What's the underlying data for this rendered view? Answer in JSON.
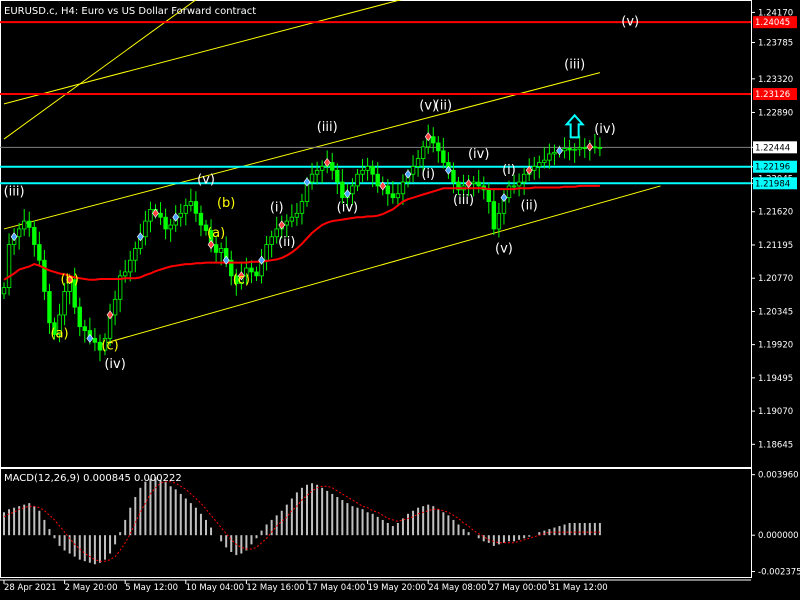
{
  "colors": {
    "background": "#000000",
    "axis": "#ffffff",
    "grid": "#2a2a2a",
    "bull_candle": "#00ff00",
    "bear_candle": "#00ff00",
    "moving_average": "#ff0000",
    "channel": "#ffff00",
    "resistance": "#ff0000",
    "support": "#00ffff",
    "macd_hist": "#c0c0c0",
    "macd_signal": "#ff0000",
    "wave_white": "#ffffff",
    "wave_yellow": "#ffff00",
    "price_box_red": "#ff0000",
    "price_box_cyan": "#00ffff",
    "arrow": "#00ffff"
  },
  "chart_data": [
    {
      "type": "line",
      "title": "EURUSD.c, H4:  Euro vs US Dollar Forward contract",
      "ylim": [
        1.18342,
        1.24303
      ],
      "y_ticks": [
        "1.24170",
        "1.23785",
        "1.23320",
        "1.22890",
        "1.22444",
        "1.22196",
        "1.22045",
        "1.21984",
        "1.21620",
        "1.21195",
        "1.20770",
        "1.20345",
        "1.19920",
        "1.19495",
        "1.19070",
        "1.18645"
      ],
      "x_ticks": [
        "28 Apr 2021",
        "2 May 20:00",
        "5 May 12:00",
        "10 May 04:00",
        "12 May 16:00",
        "17 May 04:00",
        "19 May 20:00",
        "24 May 08:00",
        "27 May 00:00",
        "31 May 12:00"
      ],
      "x_count": 119,
      "x_tick_index": [
        0,
        12,
        24,
        36,
        48,
        60,
        72,
        84,
        96,
        108
      ],
      "close": [
        1.2065,
        1.212,
        1.213,
        1.214,
        1.215,
        1.2142,
        1.212,
        1.21,
        1.206,
        1.202,
        1.2005,
        1.203,
        1.206,
        1.2075,
        1.204,
        1.2015,
        1.201,
        1.2,
        1.1995,
        1.1985,
        1.2,
        1.203,
        1.205,
        1.208,
        1.2085,
        1.21,
        1.2115,
        1.213,
        1.215,
        1.2165,
        1.216,
        1.2155,
        1.214,
        1.2145,
        1.2155,
        1.216,
        1.217,
        1.2175,
        1.216,
        1.2145,
        1.2138,
        1.212,
        1.211,
        1.2115,
        1.21,
        1.208,
        1.207,
        1.208,
        1.209,
        1.2085,
        1.208,
        1.21,
        1.212,
        1.213,
        1.214,
        1.2145,
        1.215,
        1.2155,
        1.216,
        1.2175,
        1.22,
        1.221,
        1.2215,
        1.222,
        1.2225,
        1.2215,
        1.22,
        1.218,
        1.2185,
        1.2195,
        1.221,
        1.2215,
        1.222,
        1.221,
        1.2195,
        1.2195,
        1.2185,
        1.218,
        1.2185,
        1.22,
        1.221,
        1.222,
        1.223,
        1.2245,
        1.2258,
        1.225,
        1.224,
        1.2225,
        1.2215,
        1.22,
        1.219,
        1.2195,
        1.2198,
        1.22,
        1.2195,
        1.219,
        1.2175,
        1.214,
        1.216,
        1.218,
        1.2195,
        1.2195,
        1.22,
        1.221,
        1.2215,
        1.222,
        1.2225,
        1.2228,
        1.2236,
        1.2238,
        1.224,
        1.2243,
        1.2241,
        1.2242,
        1.2244,
        1.2243,
        1.2245,
        1.2244,
        1.2244
      ],
      "high_range": 0.0022,
      "moving_average": [
        1.2075,
        1.2079,
        1.2083,
        1.2088,
        1.209,
        1.2092,
        1.2095,
        1.2093,
        1.209,
        1.2087,
        1.2085,
        1.2083,
        1.2082,
        1.208,
        1.2078,
        1.2077,
        1.2076,
        1.2075,
        1.2075,
        1.2076,
        1.2076,
        1.2076,
        1.2076,
        1.2076,
        1.2077,
        1.2077,
        1.2077,
        1.2078,
        1.2081,
        1.2083,
        1.2086,
        1.2088,
        1.209,
        1.2092,
        1.2093,
        1.2094,
        1.2095,
        1.2095,
        1.2096,
        1.2096,
        1.2097,
        1.2097,
        1.2097,
        1.2097,
        1.2097,
        1.2097,
        1.2097,
        1.2097,
        1.2097,
        1.2098,
        1.2098,
        1.2098,
        1.2099,
        1.21,
        1.2101,
        1.2103,
        1.2106,
        1.211,
        1.2115,
        1.2121,
        1.2128,
        1.2135,
        1.214,
        1.2145,
        1.2148,
        1.215,
        1.2151,
        1.2152,
        1.2153,
        1.2154,
        1.2155,
        1.2155,
        1.2156,
        1.2156,
        1.2157,
        1.2159,
        1.2162,
        1.2165,
        1.217,
        1.2175,
        1.2178,
        1.218,
        1.2182,
        1.2184,
        1.2186,
        1.2188,
        1.219,
        1.2192,
        1.2192,
        1.2192,
        1.2192,
        1.2192,
        1.2192,
        1.2192,
        1.2192,
        1.2192,
        1.2191,
        1.2191,
        1.2191,
        1.2191,
        1.2191,
        1.2191,
        1.2192,
        1.2192,
        1.2192,
        1.2193,
        1.2193,
        1.2193,
        1.2193,
        1.2193,
        1.2193,
        1.2194,
        1.2194,
        1.2194,
        1.2195,
        1.2195,
        1.2195,
        1.2195,
        1.2195
      ],
      "horizontal_levels": [
        {
          "price": 1.24045,
          "label": "1.24045",
          "kind": "resistance"
        },
        {
          "price": 1.23126,
          "label": "1.23126",
          "kind": "resistance"
        },
        {
          "price": 1.22196,
          "label": "1.22196",
          "kind": "support"
        },
        {
          "price": 1.21984,
          "label": "1.21984",
          "kind": "support"
        }
      ],
      "current_price": "1.22444",
      "wave_labels": [
        {
          "text": "(iii)",
          "i": 2,
          "price": 1.2183,
          "color": "white"
        },
        {
          "text": "(a)",
          "i": 11,
          "price": 1.2001,
          "color": "yellow"
        },
        {
          "text": "(b)",
          "i": 13,
          "price": 1.207,
          "color": "yellow"
        },
        {
          "text": "(c)",
          "i": 21,
          "price": 1.1986,
          "color": "yellow"
        },
        {
          "text": "(iv)",
          "i": 22,
          "price": 1.1962,
          "color": "white"
        },
        {
          "text": "(v)",
          "i": 40,
          "price": 1.2198,
          "color": "white"
        },
        {
          "text": "(b)",
          "i": 44,
          "price": 1.2168,
          "color": "yellow"
        },
        {
          "text": "(a)",
          "i": 42,
          "price": 1.213,
          "color": "yellow"
        },
        {
          "text": "(c)",
          "i": 47,
          "price": 1.207,
          "color": "yellow"
        },
        {
          "text": "(i)",
          "i": 54,
          "price": 1.2162,
          "color": "white"
        },
        {
          "text": "(ii)",
          "i": 56,
          "price": 1.2118,
          "color": "white"
        },
        {
          "text": "(iii)",
          "i": 64,
          "price": 1.2265,
          "color": "white"
        },
        {
          "text": "(iv)",
          "i": 68,
          "price": 1.2162,
          "color": "white"
        },
        {
          "text": "(i)",
          "i": 84,
          "price": 1.2205,
          "color": "white"
        },
        {
          "text": "(v)",
          "i": 84,
          "price": 1.2293,
          "color": "white"
        },
        {
          "text": "(ii)",
          "i": 87,
          "price": 1.2293,
          "color": "white"
        },
        {
          "text": "(iii)",
          "i": 91,
          "price": 1.2172,
          "color": "white"
        },
        {
          "text": "(iv)",
          "i": 94,
          "price": 1.2231,
          "color": "white"
        },
        {
          "text": "(v)",
          "i": 99,
          "price": 1.211,
          "color": "white"
        },
        {
          "text": "(i)",
          "i": 100,
          "price": 1.221,
          "color": "white"
        },
        {
          "text": "(ii)",
          "i": 104,
          "price": 1.2165,
          "color": "white"
        },
        {
          "text": "(iv)",
          "i": 119,
          "price": 1.2263,
          "color": "white"
        },
        {
          "text": "(iii)",
          "i": 113,
          "price": 1.2345,
          "color": "white"
        },
        {
          "text": "(v)",
          "i": 124,
          "price": 1.24,
          "color": "white"
        }
      ],
      "up_arrow": {
        "i": 113,
        "price": 1.227
      },
      "channels": [
        {
          "from": [
            19,
            1.1992
          ],
          "to": [
            130,
            1.2195
          ]
        },
        {
          "from": [
            0,
            1.214
          ],
          "to": [
            118,
            1.234
          ]
        },
        {
          "from": [
            0,
            1.23
          ],
          "to": [
            118,
            1.25
          ]
        },
        {
          "from": [
            0,
            1.2255
          ],
          "to": [
            48,
            1.248
          ]
        }
      ]
    },
    {
      "type": "bar",
      "title": "MACD(12,26,9) 0.000845 0.000222",
      "ylim": [
        -0.0028,
        0.0042
      ],
      "y_ticks": [
        "0.003960",
        "0.000000",
        "-0.002375"
      ],
      "macd": [
        0.0015,
        0.0017,
        0.0018,
        0.0019,
        0.002,
        0.0021,
        0.0019,
        0.0016,
        0.001,
        0.0004,
        -0.0002,
        -0.0007,
        -0.001,
        -0.0012,
        -0.0014,
        -0.0016,
        -0.0017,
        -0.0018,
        -0.0019,
        -0.0018,
        -0.0016,
        -0.0012,
        -0.0006,
        0.0002,
        0.001,
        0.0018,
        0.0025,
        0.0031,
        0.0035,
        0.0037,
        0.0038,
        0.0036,
        0.0035,
        0.0032,
        0.003,
        0.0027,
        0.0024,
        0.0021,
        0.0018,
        0.0014,
        0.001,
        0.0005,
        0.0,
        -0.0004,
        -0.0008,
        -0.0011,
        -0.0013,
        -0.0012,
        -0.001,
        -0.0006,
        -0.0002,
        0.0003,
        0.0007,
        0.001,
        0.0013,
        0.0016,
        0.002,
        0.0024,
        0.0028,
        0.0031,
        0.0033,
        0.0034,
        0.0033,
        0.0031,
        0.0029,
        0.0027,
        0.0025,
        0.0023,
        0.0021,
        0.0019,
        0.0018,
        0.0017,
        0.0015,
        0.0014,
        0.0012,
        0.001,
        0.0008,
        0.0006,
        0.0008,
        0.0011,
        0.0014,
        0.0016,
        0.0018,
        0.0019,
        0.002,
        0.0019,
        0.0017,
        0.0015,
        0.0013,
        0.001,
        0.0007,
        0.0004,
        0.0002,
        0.0,
        -0.0002,
        -0.0004,
        -0.0005,
        -0.0007,
        -0.0006,
        -0.0005,
        -0.0004,
        -0.0004,
        -0.0003,
        -0.0002,
        -0.0001,
        0.0,
        0.0002,
        0.0003,
        0.0004,
        0.0005,
        0.0006,
        0.0007,
        0.0008,
        0.0008,
        0.0008,
        0.0008,
        0.0008,
        0.0008,
        0.0008
      ],
      "signal": [
        0.0012,
        0.0014,
        0.0015,
        0.0017,
        0.0018,
        0.0019,
        0.0019,
        0.0018,
        0.0016,
        0.0013,
        0.001,
        0.0006,
        0.0002,
        -0.0002,
        -0.0006,
        -0.0009,
        -0.0012,
        -0.0014,
        -0.0016,
        -0.0017,
        -0.0017,
        -0.0016,
        -0.0014,
        -0.001,
        -0.0005,
        0.0001,
        0.0008,
        0.0015,
        0.0021,
        0.0027,
        0.0031,
        0.0034,
        0.0035,
        0.0035,
        0.0034,
        0.0032,
        0.003,
        0.0027,
        0.0024,
        0.0021,
        0.0017,
        0.0013,
        0.0009,
        0.0005,
        0.0001,
        -0.0003,
        -0.0006,
        -0.0008,
        -0.0009,
        -0.0009,
        -0.0008,
        -0.0005,
        -0.0002,
        0.0002,
        0.0006,
        0.0009,
        0.0012,
        0.0016,
        0.0019,
        0.0023,
        0.0026,
        0.0029,
        0.0031,
        0.0032,
        0.0032,
        0.0031,
        0.0029,
        0.0027,
        0.0025,
        0.0023,
        0.0021,
        0.0019,
        0.0018,
        0.0016,
        0.0015,
        0.0013,
        0.0011,
        0.001,
        0.0009,
        0.001,
        0.0011,
        0.0012,
        0.0014,
        0.0015,
        0.0016,
        0.0017,
        0.0017,
        0.0016,
        0.0015,
        0.0013,
        0.0011,
        0.0008,
        0.0006,
        0.0003,
        0.0001,
        -0.0001,
        -0.0003,
        -0.0004,
        -0.0005,
        -0.0005,
        -0.0005,
        -0.0005,
        -0.0004,
        -0.0003,
        -0.0002,
        -0.0001,
        0.0,
        0.0001,
        0.0002,
        0.0002,
        0.0002,
        0.0002,
        0.0002,
        0.0002,
        0.0002,
        0.0002,
        0.0002,
        0.0002,
        0.0002
      ]
    }
  ]
}
